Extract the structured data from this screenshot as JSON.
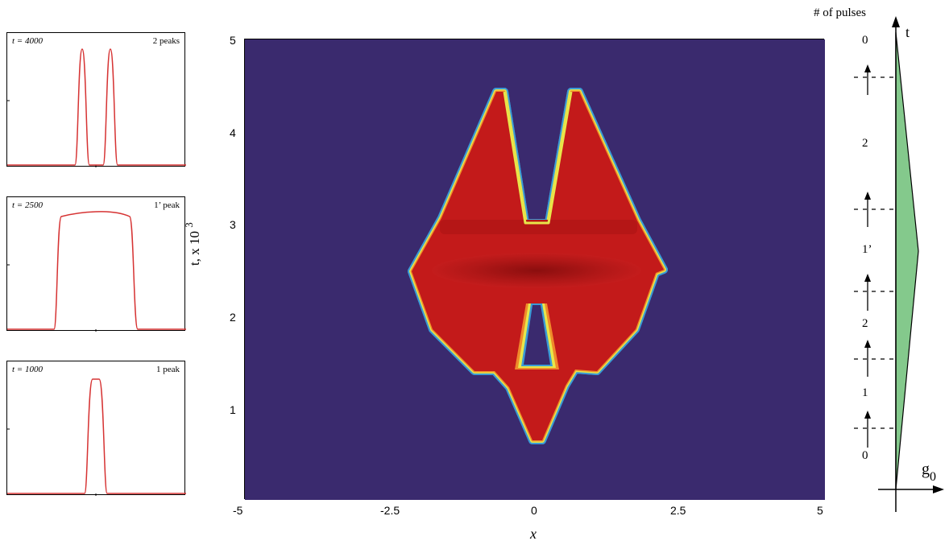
{
  "colors": {
    "background": "#3a2a6e",
    "hot": "#c31a1a",
    "curve": "#d63333",
    "fill_green": "#84c98c"
  },
  "panels": [
    {
      "time_label": "t = 4000",
      "peaks_label": "2 peaks"
    },
    {
      "time_label": "t = 2500",
      "peaks_label": "1’ peak"
    },
    {
      "time_label": "t = 1000",
      "peaks_label": "1 peak"
    }
  ],
  "main": {
    "ylabel": "t,  x 10",
    "ylabel_exp": "3",
    "xlabel": "x",
    "xticks": [
      "-5",
      "-2.5",
      "0",
      "2.5",
      "5"
    ],
    "yticks": [
      "1",
      "2",
      "3",
      "4",
      "5"
    ]
  },
  "right": {
    "header": "# of pulses",
    "t_label": "t",
    "g0_label": "g",
    "g0_sub": "0",
    "pulse_counts": [
      "0",
      "2",
      "1’",
      "2",
      "1",
      "0"
    ]
  },
  "chart_data": {
    "type": "heatmap",
    "title": "",
    "xlabel": "x",
    "ylabel": "t,  x 10^3",
    "xlim": [
      -5,
      5
    ],
    "ylim": [
      0,
      5
    ],
    "grid": false,
    "stages": [
      {
        "t_start": 0.7,
        "t_end": 1.45,
        "pulses": "1",
        "x_half_width_start": 0.05,
        "x_half_width_end": 0.6
      },
      {
        "t_start": 1.45,
        "t_end": 2.5,
        "pulses": "2",
        "x_half_width_start": 1.2,
        "x_half_width_end": 2.1
      },
      {
        "t_start": 2.5,
        "t_end": 3.05,
        "pulses": "1’",
        "x_half_width_start": 2.1,
        "x_half_width_end": 1.6
      },
      {
        "t_start": 3.05,
        "t_end": 4.45,
        "pulses": "2",
        "x_half_width_start": 1.6,
        "x_half_width_end": 0.55
      }
    ],
    "profiles": [
      {
        "t": 4000,
        "peaks": "2 peaks"
      },
      {
        "t": 2500,
        "peaks": "1’ peak"
      },
      {
        "t": 1000,
        "peaks": "1 peak"
      }
    ],
    "g0_profile": {
      "t_pulse_boundaries": [
        0.1,
        0.2,
        0.3,
        0.45,
        0.52,
        0.8
      ],
      "pulse_counts": [
        "0",
        "1",
        "2",
        "1’",
        "2",
        "0"
      ],
      "peak_at_fraction": 0.52
    }
  }
}
